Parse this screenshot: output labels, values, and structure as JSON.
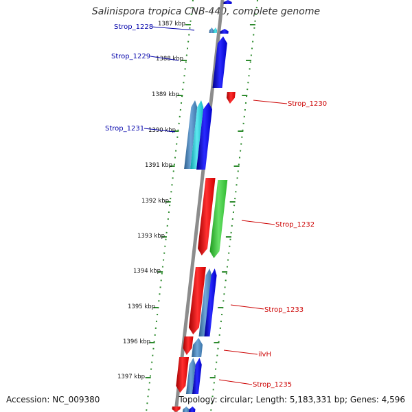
{
  "header": {
    "title": "Salinispora tropica CNB-440, complete genome"
  },
  "footer": {
    "accession": "Accession: NC_009380",
    "summary": "Topology: circular; Length: 5,183,331 bp; Genes: 4,596"
  },
  "colors": {
    "backbone": "#8c8c8c",
    "tick": "#2e8b2e",
    "forward_gene": "#0000ee",
    "forward_gene_alt": "#4682b4",
    "forward_gene_alt2": "#19c8d2",
    "reverse_gene": "#ee0000",
    "rna_gene": "#33cc33",
    "label_forward": "#0000aa",
    "label_reverse": "#cc0000"
  },
  "scale": {
    "labels": [
      "1387 kbp",
      "1388 kbp",
      "1389 kbp",
      "1390 kbp",
      "1391 kbp",
      "1392 kbp",
      "1393 kbp",
      "1394 kbp",
      "1395 kbp",
      "1396 kbp",
      "1397 kbp"
    ]
  },
  "genes": [
    {
      "name": "Strop_1228",
      "strand": "forward"
    },
    {
      "name": "Strop_1229",
      "strand": "forward"
    },
    {
      "name": "Strop_1230",
      "strand": "reverse"
    },
    {
      "name": "Strop_1231",
      "strand": "forward"
    },
    {
      "name": "Strop_1232",
      "strand": "reverse"
    },
    {
      "name": "Strop_1233",
      "strand": "reverse"
    },
    {
      "name": "ilvH",
      "strand": "reverse"
    },
    {
      "name": "Strop_1235",
      "strand": "reverse"
    }
  ]
}
